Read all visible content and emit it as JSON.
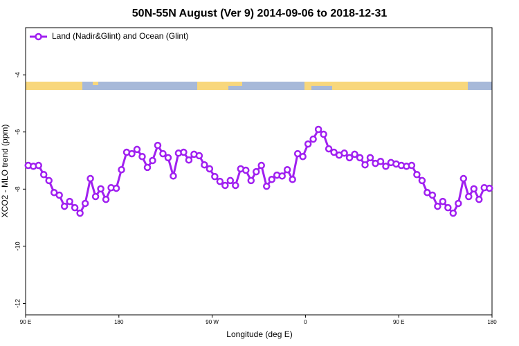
{
  "chart_data": {
    "type": "line",
    "title": "50N-55N August (Ver 9)   2014-09-06 to 2018-12-31",
    "xlabel": "Longitude (deg E)",
    "ylabel": "XCO2 - MLO trend (ppm)",
    "legend": "top-left",
    "x": [
      92.5,
      97.5,
      102.5,
      107.5,
      112.5,
      117.5,
      122.5,
      127.5,
      132.5,
      137.5,
      142.5,
      147.5,
      152.5,
      157.5,
      162.5,
      167.5,
      172.5,
      177.5,
      182.5,
      187.5,
      192.5,
      197.5,
      202.5,
      207.5,
      212.5,
      217.5,
      222.5,
      227.5,
      232.5,
      237.5,
      242.5,
      247.5,
      252.5,
      257.5,
      262.5,
      267.5,
      272.5,
      277.5,
      282.5,
      287.5,
      292.5,
      297.5,
      302.5,
      307.5,
      312.5,
      317.5,
      322.5,
      327.5,
      332.5,
      337.5,
      342.5,
      347.5,
      352.5,
      357.5,
      362.5,
      367.5,
      372.5,
      377.5,
      382.5,
      387.5,
      392.5,
      397.5,
      402.5,
      407.5,
      412.5,
      417.5,
      422.5,
      427.5,
      432.5,
      437.5,
      442.5,
      447.5,
      452.5,
      457.5,
      462.5,
      467.5,
      472.5,
      477.5,
      482.5,
      487.5,
      492.5,
      497.5,
      502.5,
      507.5,
      512.5,
      517.5,
      522.5,
      527.5,
      532.5,
      537.5
    ],
    "series": [
      {
        "name": "Land (Nadir&Glint) and Ocean (Glint)",
        "color": "#a020f0",
        "values": [
          -7.17,
          -7.2,
          -7.17,
          -7.49,
          -7.7,
          -8.12,
          -8.21,
          -8.6,
          -8.43,
          -8.65,
          -8.84,
          -8.5,
          -7.63,
          -8.26,
          -7.99,
          -8.36,
          -7.95,
          -7.97,
          -7.32,
          -6.71,
          -6.76,
          -6.61,
          -6.86,
          -7.24,
          -7.0,
          -6.47,
          -6.76,
          -6.9,
          -7.54,
          -6.74,
          -6.71,
          -6.98,
          -6.78,
          -6.83,
          -7.15,
          -7.29,
          -7.56,
          -7.73,
          -7.87,
          -7.7,
          -7.87,
          -7.29,
          -7.34,
          -7.7,
          -7.39,
          -7.17,
          -7.9,
          -7.66,
          -7.51,
          -7.54,
          -7.32,
          -7.66,
          -6.76,
          -6.86,
          -6.42,
          -6.25,
          -5.91,
          -6.08,
          -6.59,
          -6.71,
          -6.81,
          -6.74,
          -6.9,
          -6.78,
          -6.9,
          -7.15,
          -6.9,
          -7.1,
          -7.03,
          -7.2,
          -7.07,
          -7.12,
          -7.17,
          -7.2,
          -7.17,
          -7.49,
          -7.7,
          -8.12,
          -8.21,
          -8.6,
          -8.43,
          -8.65,
          -8.84,
          -8.5,
          -7.63,
          -8.26,
          -7.99,
          -8.36,
          -7.95,
          -7.97
        ]
      }
    ],
    "xlim": [
      90,
      540
    ],
    "ylim": [
      -12.4,
      -2.35
    ],
    "xticks": [
      {
        "value": 90,
        "label": "90 E"
      },
      180,
      {
        "value": 270,
        "label": "90 W"
      },
      {
        "value": 360,
        "label": "0"
      },
      {
        "value": 450,
        "label": "90 E"
      },
      {
        "value": 540,
        "label": "180"
      }
    ],
    "yticks": [
      -4,
      -6,
      -8,
      -10,
      -12
    ]
  }
}
